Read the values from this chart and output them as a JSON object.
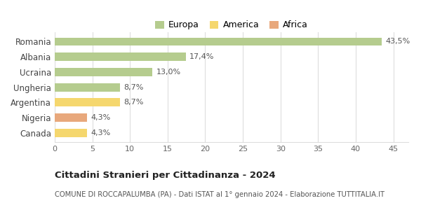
{
  "categories": [
    "Romania",
    "Albania",
    "Ucraina",
    "Ungheria",
    "Argentina",
    "Nigeria",
    "Canada"
  ],
  "values": [
    43.5,
    17.4,
    13.0,
    8.7,
    8.7,
    4.3,
    4.3
  ],
  "labels": [
    "43,5%",
    "17,4%",
    "13,0%",
    "8,7%",
    "8,7%",
    "4,3%",
    "4,3%"
  ],
  "colors": [
    "#b5cc8e",
    "#b5cc8e",
    "#b5cc8e",
    "#b5cc8e",
    "#f5d76e",
    "#e8a87c",
    "#f5d76e"
  ],
  "legend": [
    {
      "label": "Europa",
      "color": "#b5cc8e"
    },
    {
      "label": "America",
      "color": "#f5d76e"
    },
    {
      "label": "Africa",
      "color": "#e8a87c"
    }
  ],
  "xlim": [
    0,
    47
  ],
  "xticks": [
    0,
    5,
    10,
    15,
    20,
    25,
    30,
    35,
    40,
    45
  ],
  "title": "Cittadini Stranieri per Cittadinanza - 2024",
  "subtitle": "COMUNE DI ROCCAPALUMBA (PA) - Dati ISTAT al 1° gennaio 2024 - Elaborazione TUTTITALIA.IT",
  "background_color": "#ffffff",
  "grid_color": "#dddddd",
  "bar_height": 0.55
}
